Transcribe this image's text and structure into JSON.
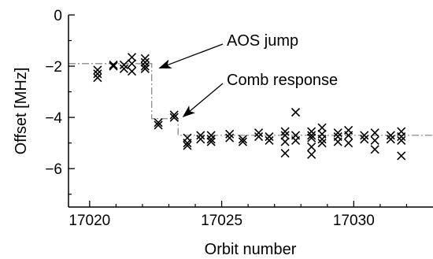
{
  "chart_data": {
    "type": "scatter",
    "title": "",
    "xlabel": "Orbit number",
    "ylabel": "Offset [MHz]",
    "xlim": [
      17019.2,
      17033.0
    ],
    "ylim": [
      -7.5,
      0
    ],
    "x_ticks": [
      17020,
      17025,
      17030
    ],
    "y_ticks": [
      0,
      -2,
      -4,
      -6
    ],
    "x_tick_labels": [
      "17020",
      "17025",
      "17030"
    ],
    "y_tick_labels": [
      "0",
      "−2",
      "−4",
      "−6"
    ],
    "grid": false,
    "marker": "x",
    "marker_color": "#000000",
    "annotations": [
      {
        "text": "AOS jump",
        "points_to": [
          17022.4,
          -2.2
        ]
      },
      {
        "text": "Comb response",
        "points_to": [
          17023.3,
          -4.1
        ]
      }
    ],
    "series": [
      {
        "values": [
          [
            17020.3,
            -2.15
          ],
          [
            17020.3,
            -2.3
          ],
          [
            17020.3,
            -2.45
          ],
          [
            17020.9,
            -2.0
          ],
          [
            17020.9,
            -1.95
          ],
          [
            17021.3,
            -2.1
          ],
          [
            17021.3,
            -1.95
          ],
          [
            17021.6,
            -1.9
          ],
          [
            17021.6,
            -2.2
          ],
          [
            17021.6,
            -1.65
          ],
          [
            17022.1,
            -1.7
          ],
          [
            17022.1,
            -1.85
          ],
          [
            17022.1,
            -2.0
          ],
          [
            17022.1,
            -2.1
          ],
          [
            17022.6,
            -4.2
          ],
          [
            17022.6,
            -4.3
          ],
          [
            17023.2,
            -3.9
          ],
          [
            17023.2,
            -4.0
          ],
          [
            17023.7,
            -4.8
          ],
          [
            17023.7,
            -5.0
          ],
          [
            17023.7,
            -5.1
          ],
          [
            17024.2,
            -4.7
          ],
          [
            17024.2,
            -4.85
          ],
          [
            17024.6,
            -4.7
          ],
          [
            17024.6,
            -4.85
          ],
          [
            17024.6,
            -4.95
          ],
          [
            17025.3,
            -4.65
          ],
          [
            17025.3,
            -4.8
          ],
          [
            17025.8,
            -4.85
          ],
          [
            17025.8,
            -4.95
          ],
          [
            17026.4,
            -4.6
          ],
          [
            17026.4,
            -4.75
          ],
          [
            17026.8,
            -4.75
          ],
          [
            17026.8,
            -4.9
          ],
          [
            17027.4,
            -4.55
          ],
          [
            17027.4,
            -4.7
          ],
          [
            17027.4,
            -4.95
          ],
          [
            17027.4,
            -5.4
          ],
          [
            17027.8,
            -3.8
          ],
          [
            17027.8,
            -4.7
          ],
          [
            17027.8,
            -4.9
          ],
          [
            17028.4,
            -4.55
          ],
          [
            17028.4,
            -4.7
          ],
          [
            17028.4,
            -4.8
          ],
          [
            17028.4,
            -5.15
          ],
          [
            17028.4,
            -5.45
          ],
          [
            17028.8,
            -4.4
          ],
          [
            17028.8,
            -4.65
          ],
          [
            17028.8,
            -4.85
          ],
          [
            17028.8,
            -5.0
          ],
          [
            17029.4,
            -4.6
          ],
          [
            17029.4,
            -4.75
          ],
          [
            17029.4,
            -4.95
          ],
          [
            17029.8,
            -4.5
          ],
          [
            17029.8,
            -4.7
          ],
          [
            17029.8,
            -5.0
          ],
          [
            17030.4,
            -4.7
          ],
          [
            17030.4,
            -4.85
          ],
          [
            17030.8,
            -4.6
          ],
          [
            17030.8,
            -4.9
          ],
          [
            17030.8,
            -5.25
          ],
          [
            17031.4,
            -4.7
          ],
          [
            17031.4,
            -4.85
          ],
          [
            17031.8,
            -4.55
          ],
          [
            17031.8,
            -4.75
          ],
          [
            17031.8,
            -4.9
          ],
          [
            17031.8,
            -5.5
          ]
        ]
      }
    ],
    "reference_line": {
      "style": "dash-dot",
      "color": "#8c8c8c",
      "values": [
        [
          17019.2,
          -1.9
        ],
        [
          17022.35,
          -1.9
        ],
        [
          17022.35,
          -4.05
        ],
        [
          17023.35,
          -4.05
        ],
        [
          17023.35,
          -4.7
        ],
        [
          17033.0,
          -4.7
        ]
      ]
    }
  }
}
